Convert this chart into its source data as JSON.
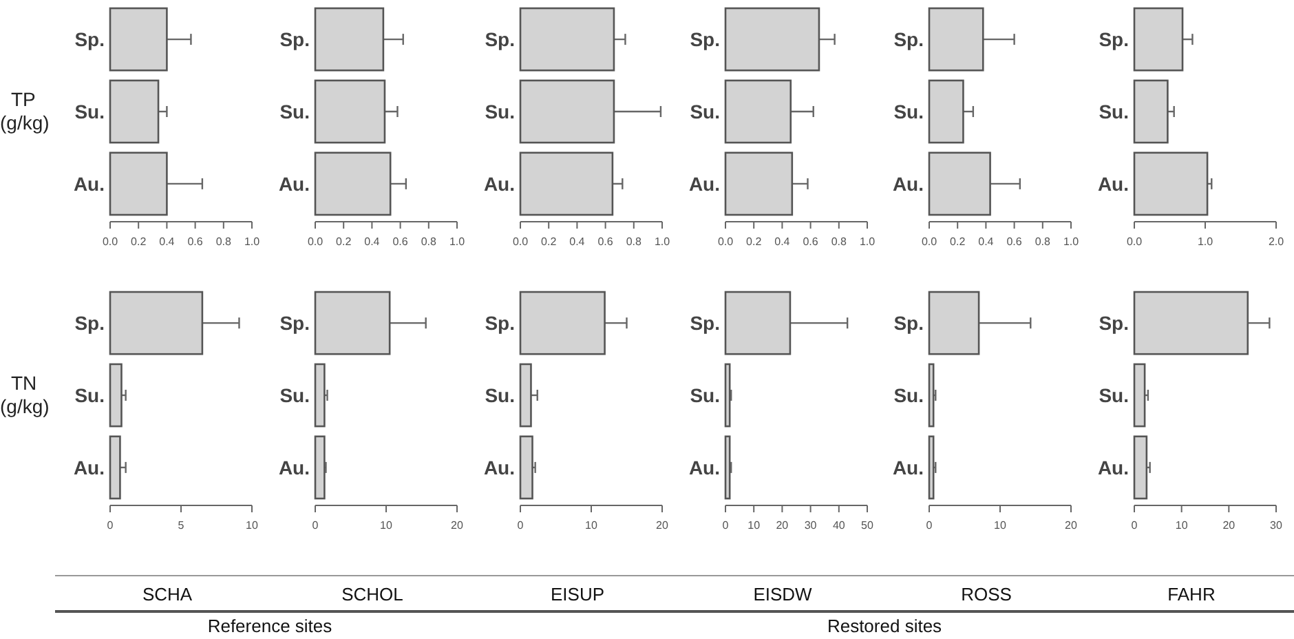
{
  "chart_data": [
    {
      "type": "bar",
      "orientation": "horizontal",
      "ylabel": "TP (g/kg)",
      "categories": [
        "Sp.",
        "Su.",
        "Au."
      ],
      "values": [
        0.4,
        0.34,
        0.4
      ],
      "errors": [
        0.17,
        0.06,
        0.25
      ],
      "color": "#d3d3d3",
      "xlim": [
        0,
        1
      ],
      "xticks": [
        {
          "value": 0,
          "label": "0.0"
        },
        {
          "value": 0.2,
          "label": "0.2"
        },
        {
          "value": 0.4,
          "label": "0.4"
        },
        {
          "value": 0.6,
          "label": "0.6"
        },
        {
          "value": 0.8,
          "label": "0.8"
        },
        {
          "value": 1,
          "label": "1.0"
        }
      ]
    },
    {
      "type": "bar",
      "orientation": "horizontal",
      "categories": [
        "Sp.",
        "Su.",
        "Au."
      ],
      "values": [
        0.48,
        0.49,
        0.53
      ],
      "errors": [
        0.14,
        0.09,
        0.11
      ],
      "color": "#d3d3d3",
      "xlim": [
        0,
        1
      ],
      "xticks": [
        {
          "value": 0,
          "label": "0.0"
        },
        {
          "value": 0.2,
          "label": "0.2"
        },
        {
          "value": 0.4,
          "label": "0.4"
        },
        {
          "value": 0.6,
          "label": "0.6"
        },
        {
          "value": 0.8,
          "label": "0.8"
        },
        {
          "value": 1,
          "label": "1.0"
        }
      ]
    },
    {
      "type": "bar",
      "orientation": "horizontal",
      "categories": [
        "Sp.",
        "Su.",
        "Au."
      ],
      "values": [
        0.66,
        0.66,
        0.65
      ],
      "errors": [
        0.08,
        0.33,
        0.07
      ],
      "color": "#d3d3d3",
      "xlim": [
        0,
        1
      ],
      "xticks": [
        {
          "value": 0,
          "label": "0.0"
        },
        {
          "value": 0.2,
          "label": "0.2"
        },
        {
          "value": 0.4,
          "label": "0.4"
        },
        {
          "value": 0.6,
          "label": "0.6"
        },
        {
          "value": 0.8,
          "label": "0.8"
        },
        {
          "value": 1,
          "label": "1.0"
        }
      ]
    },
    {
      "type": "bar",
      "orientation": "horizontal",
      "categories": [
        "Sp.",
        "Su.",
        "Au."
      ],
      "values": [
        0.66,
        0.46,
        0.47
      ],
      "errors": [
        0.11,
        0.16,
        0.11
      ],
      "color": "#d3d3d3",
      "xlim": [
        0,
        1
      ],
      "xticks": [
        {
          "value": 0,
          "label": "0.0"
        },
        {
          "value": 0.2,
          "label": "0.2"
        },
        {
          "value": 0.4,
          "label": "0.4"
        },
        {
          "value": 0.6,
          "label": "0.6"
        },
        {
          "value": 0.8,
          "label": "0.8"
        },
        {
          "value": 1,
          "label": "1.0"
        }
      ]
    },
    {
      "type": "bar",
      "orientation": "horizontal",
      "categories": [
        "Sp.",
        "Su.",
        "Au."
      ],
      "values": [
        0.38,
        0.24,
        0.43
      ],
      "errors": [
        0.22,
        0.07,
        0.21
      ],
      "color": "#d3d3d3",
      "xlim": [
        0,
        1
      ],
      "xticks": [
        {
          "value": 0,
          "label": "0.0"
        },
        {
          "value": 0.2,
          "label": "0.2"
        },
        {
          "value": 0.4,
          "label": "0.4"
        },
        {
          "value": 0.6,
          "label": "0.6"
        },
        {
          "value": 0.8,
          "label": "0.8"
        },
        {
          "value": 1,
          "label": "1.0"
        }
      ]
    },
    {
      "type": "bar",
      "orientation": "horizontal",
      "categories": [
        "Sp.",
        "Su.",
        "Au."
      ],
      "values": [
        0.68,
        0.47,
        1.03
      ],
      "errors": [
        0.14,
        0.09,
        0.06
      ],
      "color": "#d3d3d3",
      "xlim": [
        0,
        2
      ],
      "xticks": [
        {
          "value": 0,
          "label": "0.0"
        },
        {
          "value": 1,
          "label": "1.0"
        },
        {
          "value": 2,
          "label": "2.0"
        }
      ]
    },
    {
      "type": "bar",
      "orientation": "horizontal",
      "ylabel": "TN (g/kg)",
      "xlabel": "SCHA",
      "annotations": [
        "Reference sites"
      ],
      "categories": [
        "Sp.",
        "Su.",
        "Au."
      ],
      "values": [
        6.5,
        0.8,
        0.7
      ],
      "errors": [
        2.6,
        0.3,
        0.4
      ],
      "color": "#d3d3d3",
      "xlim": [
        0,
        10
      ],
      "xticks": [
        0,
        5,
        10
      ]
    },
    {
      "type": "bar",
      "orientation": "horizontal",
      "xlabel": "SCHOL",
      "categories": [
        "Sp.",
        "Su.",
        "Au."
      ],
      "values": [
        10.5,
        1.3,
        1.3
      ],
      "errors": [
        5.1,
        0.4,
        0.2
      ],
      "color": "#d3d3d3",
      "xlim": [
        0,
        20
      ],
      "xticks": [
        0,
        10,
        20
      ]
    },
    {
      "type": "bar",
      "orientation": "horizontal",
      "xlabel": "EISUP",
      "annotations": [
        "Restored sites"
      ],
      "categories": [
        "Sp.",
        "Su.",
        "Au."
      ],
      "values": [
        11.9,
        1.5,
        1.7
      ],
      "errors": [
        3.1,
        0.9,
        0.4
      ],
      "color": "#d3d3d3",
      "xlim": [
        0,
        20
      ],
      "xticks": [
        0,
        10,
        20
      ]
    },
    {
      "type": "bar",
      "orientation": "horizontal",
      "xlabel": "EISDW",
      "categories": [
        "Sp.",
        "Su.",
        "Au."
      ],
      "values": [
        22.8,
        1.5,
        1.5
      ],
      "errors": [
        20.2,
        0.5,
        0.5
      ],
      "color": "#d3d3d3",
      "xlim": [
        0,
        50
      ],
      "xticks": [
        0,
        10,
        20,
        30,
        40,
        50
      ]
    },
    {
      "type": "bar",
      "orientation": "horizontal",
      "xlabel": "ROSS",
      "categories": [
        "Sp.",
        "Su.",
        "Au."
      ],
      "values": [
        7.0,
        0.6,
        0.6
      ],
      "errors": [
        [
          7.0,
          14.3
        ],
        0.3,
        0.3
      ],
      "color": "#d3d3d3",
      "xlim": [
        0,
        20
      ],
      "xticks": [
        0,
        10,
        20
      ]
    },
    {
      "type": "bar",
      "orientation": "horizontal",
      "xlabel": "FAHR",
      "categories": [
        "Sp.",
        "Su.",
        "Au."
      ],
      "values": [
        24.0,
        2.2,
        2.6
      ],
      "errors": [
        4.6,
        0.7,
        0.7
      ],
      "color": "#d3d3d3",
      "xlim": [
        0,
        30
      ],
      "xticks": [
        0,
        10,
        20,
        30
      ]
    }
  ]
}
